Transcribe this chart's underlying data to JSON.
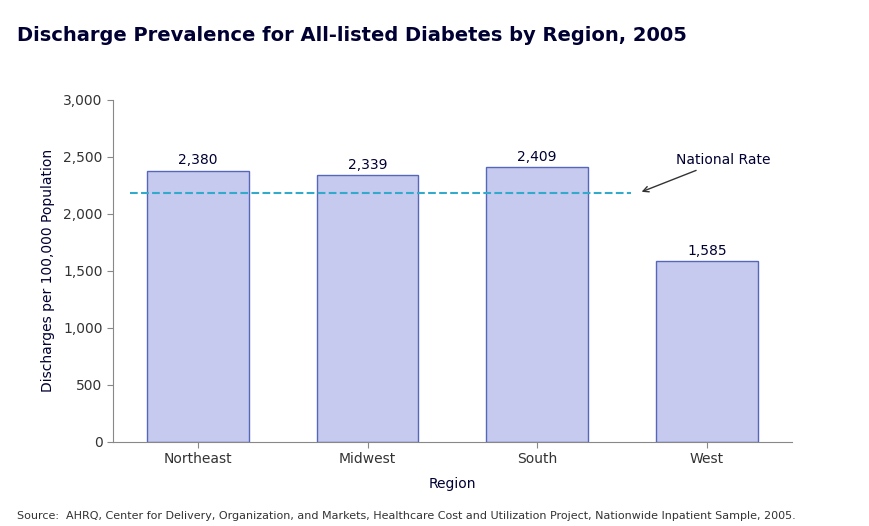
{
  "title": "Discharge Prevalence for All-listed Diabetes by Region, 2005",
  "categories": [
    "Northeast",
    "Midwest",
    "South",
    "West"
  ],
  "values": [
    2380,
    2339,
    2409,
    1585
  ],
  "bar_color": "#c5caee",
  "bar_edge_color": "#5566bb",
  "ylabel": "Discharges per 100,000 Population",
  "xlabel": "Region",
  "ylim": [
    0,
    3000
  ],
  "yticks": [
    0,
    500,
    1000,
    1500,
    2000,
    2500,
    3000
  ],
  "ytick_labels": [
    "0",
    "500",
    "1,000",
    "1,500",
    "2,000",
    "2,500",
    "3,000"
  ],
  "national_rate": 2185,
  "national_rate_label": "National Rate",
  "national_rate_color": "#33aacc",
  "source_text": "Source:  AHRQ, Center for Delivery, Organization, and Markets, Healthcare Cost and Utilization Project, Nationwide Inpatient Sample, 2005.",
  "title_color": "#000033",
  "label_color": "#000033",
  "text_color": "#333333",
  "value_labels": [
    "2,380",
    "2,339",
    "2,409",
    "1,585"
  ],
  "title_fontsize": 14,
  "axis_label_fontsize": 10,
  "tick_fontsize": 10,
  "value_label_fontsize": 10,
  "source_fontsize": 8,
  "bar_width": 0.6
}
